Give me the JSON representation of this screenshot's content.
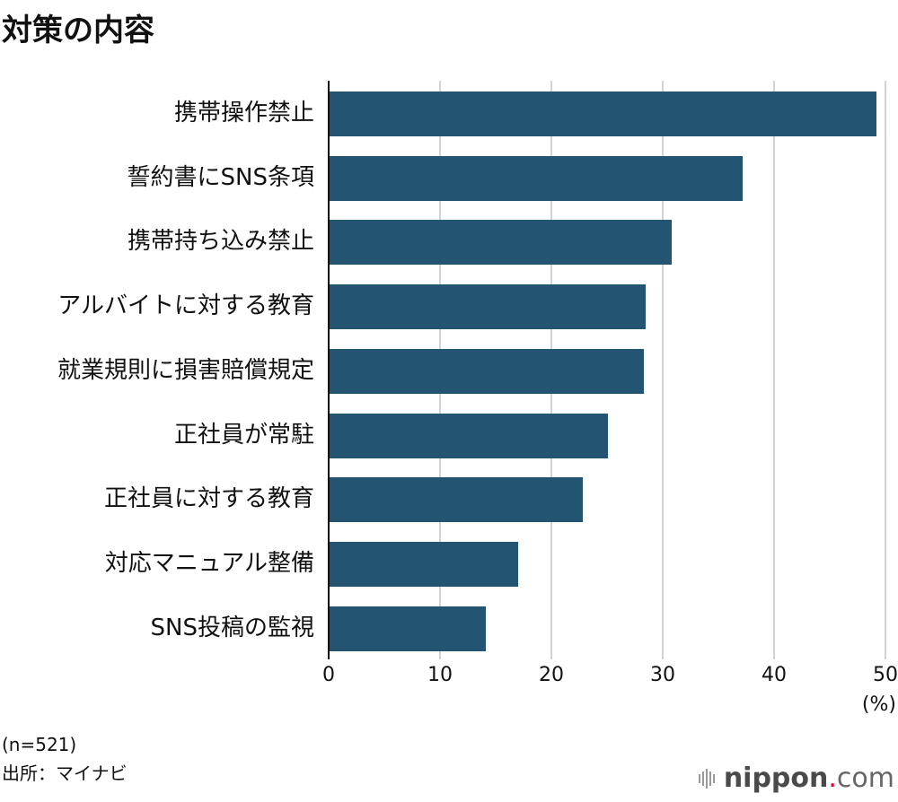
{
  "title": "対策の内容",
  "chart_data": {
    "type": "bar",
    "orientation": "horizontal",
    "title": "対策の内容",
    "categories": [
      "携帯操作禁止",
      "誓約書にSNS条項",
      "携帯持ち込み禁止",
      "アルバイトに対する教育",
      "就業規則に損害賠償規定",
      "正社員が常駐",
      "正社員に対する教育",
      "対応マニュアル整備",
      "SNS投稿の監視"
    ],
    "values": [
      49.2,
      37.2,
      30.8,
      28.5,
      28.3,
      25.1,
      22.8,
      17.0,
      14.1
    ],
    "xlabel": "(%)",
    "ylabel": "",
    "xlim": [
      0,
      50
    ],
    "xticks": [
      "0",
      "10",
      "20",
      "30",
      "40",
      "50"
    ],
    "grid": true,
    "bar_color": "#235572"
  },
  "footer": {
    "sample": "(n=521)",
    "source": "出所：マイナビ",
    "logo": {
      "name": "nippon",
      "dot": ".",
      "tld": "com"
    }
  }
}
